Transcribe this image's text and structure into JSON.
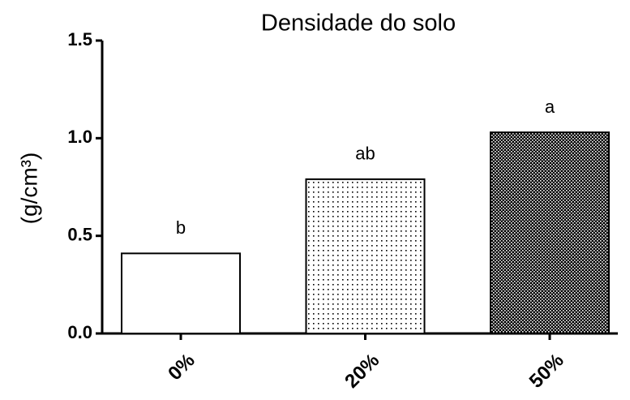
{
  "chart_data": {
    "type": "bar",
    "title": "Densidade do solo",
    "y_label": "(g/cm³)",
    "categories": [
      "0%",
      "20%",
      "50%"
    ],
    "values": [
      0.41,
      0.79,
      1.03
    ],
    "annotations": [
      "b",
      "ab",
      "a"
    ],
    "patterns": [
      "none",
      "dots",
      "checker"
    ],
    "color": "#000000",
    "ylim": [
      0,
      1.5
    ],
    "yticks": [
      {
        "value": 0,
        "label": "0.0"
      },
      {
        "value": 0.5,
        "label": "0.5"
      },
      {
        "value": 1,
        "label": "1.0"
      },
      {
        "value": 1.5,
        "label": "1.5"
      }
    ]
  }
}
